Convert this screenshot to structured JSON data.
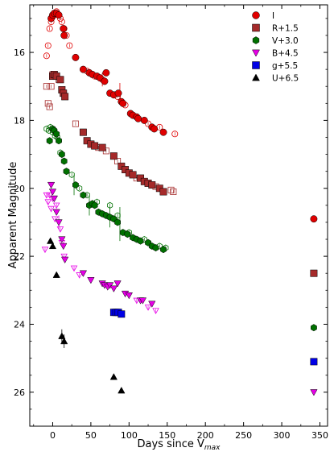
{
  "chart_data": {
    "type": "scatter",
    "xlabel": "Days since V",
    "xlabel_sub": "max",
    "ylabel": "Apparent Magnitude",
    "xlim": [
      -30,
      360
    ],
    "ylim": [
      27.0,
      14.6
    ],
    "y_inverted": true,
    "x_ticks": [
      0,
      50,
      100,
      150,
      200,
      250,
      300,
      350
    ],
    "y_ticks": [
      16,
      18,
      20,
      22,
      24,
      26
    ],
    "grid": false,
    "legend_position": "top-right",
    "series": [
      {
        "name": "I",
        "color": "#e00000",
        "marker": "circle",
        "filled": [
          [
            -2,
            15.0
          ],
          [
            0,
            14.9
          ],
          [
            2,
            14.85
          ],
          [
            5,
            14.85
          ],
          [
            8,
            14.9
          ],
          [
            14,
            15.3
          ],
          [
            15,
            15.5
          ],
          [
            30,
            16.15
          ],
          [
            40,
            16.5
          ],
          [
            48,
            16.6
          ],
          [
            52,
            16.65
          ],
          [
            58,
            16.7
          ],
          [
            62,
            16.75
          ],
          [
            68,
            16.85
          ],
          [
            70,
            16.6
          ],
          [
            75,
            17.2
          ],
          [
            80,
            17.25
          ],
          [
            86,
            17.2
          ],
          [
            90,
            17.45
          ],
          [
            92,
            17.5
          ],
          [
            102,
            17.8
          ],
          [
            105,
            17.85
          ],
          [
            110,
            17.9
          ],
          [
            112,
            17.95
          ],
          [
            120,
            18.0
          ],
          [
            130,
            18.2
          ],
          [
            133,
            18.25
          ],
          [
            145,
            18.35
          ],
          [
            342,
            20.9
          ]
        ],
        "open": [
          [
            -8,
            16.1
          ],
          [
            -6,
            15.8
          ],
          [
            -4,
            15.3
          ],
          [
            -2,
            15.1
          ],
          [
            0,
            14.95
          ],
          [
            2,
            14.9
          ],
          [
            5,
            14.8
          ],
          [
            10,
            15.0
          ],
          [
            12,
            15.1
          ],
          [
            15,
            15.3
          ],
          [
            18,
            15.5
          ],
          [
            22,
            15.8
          ],
          [
            45,
            16.55
          ],
          [
            55,
            16.7
          ],
          [
            65,
            16.8
          ],
          [
            85,
            17.3
          ],
          [
            95,
            17.55
          ],
          [
            125,
            18.1
          ],
          [
            140,
            18.2
          ],
          [
            160,
            18.4
          ]
        ]
      },
      {
        "name": "R+1.5",
        "color": "#a52a2a",
        "marker": "square",
        "filled": [
          [
            0,
            16.7
          ],
          [
            2,
            16.65
          ],
          [
            5,
            16.7
          ],
          [
            10,
            16.8
          ],
          [
            12,
            17.1
          ],
          [
            14,
            17.2
          ],
          [
            16,
            17.3
          ],
          [
            40,
            18.35
          ],
          [
            45,
            18.6
          ],
          [
            50,
            18.7
          ],
          [
            55,
            18.75
          ],
          [
            65,
            18.8
          ],
          [
            80,
            19.05
          ],
          [
            90,
            19.35
          ],
          [
            95,
            19.45
          ],
          [
            100,
            19.55
          ],
          [
            105,
            19.6
          ],
          [
            115,
            19.7
          ],
          [
            120,
            19.8
          ],
          [
            125,
            19.85
          ],
          [
            130,
            19.9
          ],
          [
            140,
            20.0
          ],
          [
            145,
            20.1
          ],
          [
            342,
            22.5
          ]
        ],
        "open": [
          [
            -8,
            17.0
          ],
          [
            -6,
            17.5
          ],
          [
            -4,
            17.6
          ],
          [
            -2,
            17.0
          ],
          [
            0,
            16.65
          ],
          [
            5,
            16.7
          ],
          [
            8,
            16.8
          ],
          [
            30,
            18.1
          ],
          [
            60,
            18.8
          ],
          [
            70,
            18.9
          ],
          [
            85,
            19.2
          ],
          [
            110,
            19.7
          ],
          [
            135,
            19.95
          ],
          [
            155,
            20.05
          ],
          [
            158,
            20.1
          ]
        ]
      },
      {
        "name": "V+3.0",
        "color": "#007000",
        "marker": "hexagon",
        "filled": [
          [
            -4,
            18.6
          ],
          [
            0,
            18.25
          ],
          [
            2,
            18.3
          ],
          [
            5,
            18.4
          ],
          [
            8,
            18.6
          ],
          [
            12,
            19.0
          ],
          [
            15,
            19.2
          ],
          [
            18,
            19.5
          ],
          [
            30,
            19.9
          ],
          [
            40,
            20.2
          ],
          [
            48,
            20.5
          ],
          [
            52,
            20.45
          ],
          [
            55,
            20.5
          ],
          [
            60,
            20.7
          ],
          [
            65,
            20.75
          ],
          [
            70,
            20.8
          ],
          [
            75,
            20.85
          ],
          [
            80,
            20.9
          ],
          [
            85,
            21.0
          ],
          [
            92,
            21.3
          ],
          [
            98,
            21.35
          ],
          [
            105,
            21.45
          ],
          [
            110,
            21.5
          ],
          [
            115,
            21.55
          ],
          [
            125,
            21.6
          ],
          [
            130,
            21.7
          ],
          [
            135,
            21.75
          ],
          [
            145,
            21.8
          ],
          [
            342,
            24.1
          ]
        ],
        "open": [
          [
            -8,
            18.25
          ],
          [
            -5,
            18.3
          ],
          [
            -3,
            18.2
          ],
          [
            0,
            18.35
          ],
          [
            3,
            18.45
          ],
          [
            6,
            18.5
          ],
          [
            10,
            18.95
          ],
          [
            25,
            19.6
          ],
          [
            35,
            20.0
          ],
          [
            45,
            20.2
          ],
          [
            58,
            20.4
          ],
          [
            75,
            20.5
          ],
          [
            85,
            20.8
          ],
          [
            100,
            21.3
          ],
          [
            120,
            21.5
          ],
          [
            140,
            21.7
          ],
          [
            148,
            21.75
          ]
        ]
      },
      {
        "name": "B+4.5",
        "color": "#e600e6",
        "marker": "triangle-down",
        "filled": [
          [
            -2,
            19.9
          ],
          [
            0,
            20.1
          ],
          [
            2,
            20.3
          ],
          [
            5,
            20.7
          ],
          [
            8,
            21.0
          ],
          [
            12,
            21.5
          ],
          [
            14,
            21.7
          ],
          [
            16,
            22.1
          ],
          [
            40,
            22.5
          ],
          [
            50,
            22.7
          ],
          [
            65,
            22.8
          ],
          [
            68,
            22.85
          ],
          [
            72,
            22.9
          ],
          [
            75,
            22.85
          ],
          [
            80,
            22.95
          ],
          [
            85,
            22.8
          ],
          [
            95,
            23.1
          ],
          [
            100,
            23.15
          ],
          [
            115,
            23.3
          ],
          [
            118,
            23.3
          ],
          [
            130,
            23.4
          ],
          [
            342,
            26.0
          ]
        ],
        "open": [
          [
            -8,
            20.2
          ],
          [
            -6,
            20.4
          ],
          [
            -4,
            20.2
          ],
          [
            -2,
            20.6
          ],
          [
            0,
            20.3
          ],
          [
            3,
            20.9
          ],
          [
            5,
            20.5
          ],
          [
            10,
            21.2
          ],
          [
            12,
            21.6
          ],
          [
            15,
            22.0
          ],
          [
            28,
            22.35
          ],
          [
            35,
            22.55
          ],
          [
            110,
            23.3
          ],
          [
            125,
            23.5
          ],
          [
            135,
            23.6
          ],
          [
            -10,
            21.8
          ]
        ]
      },
      {
        "name": "g+5.5",
        "color": "#0000e6",
        "marker": "square",
        "filled": [
          [
            80,
            23.65
          ],
          [
            83,
            23.65
          ],
          [
            86,
            23.65
          ],
          [
            90,
            23.7
          ],
          [
            342,
            25.1
          ]
        ],
        "open": []
      },
      {
        "name": "U+6.5",
        "color": "#000000",
        "marker": "triangle-up",
        "filled": [
          [
            -3,
            21.55
          ],
          [
            0,
            21.7
          ],
          [
            5,
            22.55
          ],
          [
            12,
            24.35
          ],
          [
            15,
            24.5
          ],
          [
            80,
            25.55
          ],
          [
            90,
            25.95
          ]
        ],
        "open": []
      }
    ],
    "error_bars": [
      {
        "series": "I",
        "x": 88,
        "y": 17.2,
        "low": 16.9,
        "high": 17.5
      },
      {
        "series": "I",
        "x": 65,
        "y": 16.8,
        "low": 16.6,
        "high": 17.0
      },
      {
        "series": "V+3.0",
        "x": 48,
        "y": 20.5,
        "low": 20.2,
        "high": 20.8
      },
      {
        "series": "V+3.0",
        "x": 75,
        "y": 20.85,
        "low": 20.55,
        "high": 21.15
      },
      {
        "series": "V+3.0",
        "x": 88,
        "y": 21.05,
        "low": 20.55,
        "high": 21.55
      },
      {
        "series": "V+3.0",
        "x": 28,
        "y": 19.9,
        "low": 19.6,
        "high": 20.2
      },
      {
        "series": "U+6.5",
        "x": 12,
        "y": 24.35,
        "low": 24.15,
        "high": 24.55
      },
      {
        "series": "U+6.5",
        "x": 15,
        "y": 24.5,
        "low": 24.3,
        "high": 24.7
      },
      {
        "series": "B+4.5",
        "x": 8,
        "y": 21.0,
        "low": 20.8,
        "high": 21.2
      }
    ]
  }
}
